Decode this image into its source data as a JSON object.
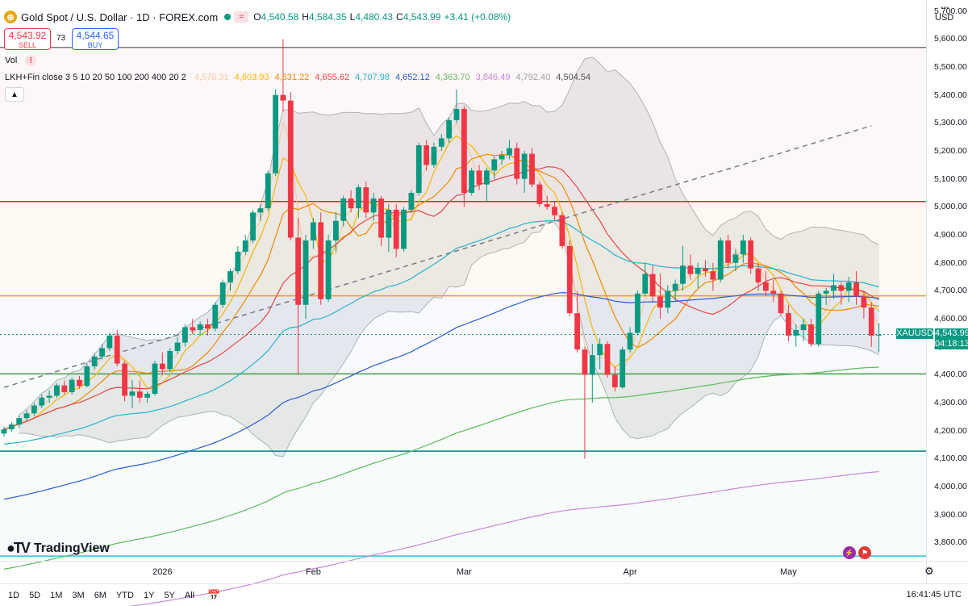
{
  "header": {
    "title": "Gold Spot / U.S. Dollar · 1D · FOREX.com",
    "icon_symbol": "⊕",
    "approx_symbol": "≈",
    "ohlc": {
      "o_label": "O",
      "o": "4,540.58",
      "h_label": "H",
      "h": "4,584.35",
      "l_label": "L",
      "l": "4,480.43",
      "c_label": "C",
      "c": "4,543.99",
      "change": "+3.41 (+0.08%)"
    },
    "sell_price": "4,543.92",
    "sell_label": "SELL",
    "spread": "73",
    "buy_price": "4,544.65",
    "buy_label": "BUY",
    "vol_label": "Vol",
    "warn_symbol": "!",
    "indicator_name": "LKH+Fin close 3 5 10 20 50 100 200 400 20 2",
    "indicator_values": [
      {
        "v": "4,576.31",
        "color": "#f7c9a0"
      },
      {
        "v": "4,603.93",
        "color": "#f5b800"
      },
      {
        "v": "4,631.22",
        "color": "#f08a00"
      },
      {
        "v": "4,655.62",
        "color": "#e64646"
      },
      {
        "v": "4,707.98",
        "color": "#26b3cc"
      },
      {
        "v": "4,652.12",
        "color": "#2e5bd6"
      },
      {
        "v": "4,363.70",
        "color": "#5fb85f"
      },
      {
        "v": "3,846.49",
        "color": "#c48ad6"
      },
      {
        "v": "4,792.40",
        "color": "#a0a0a0"
      },
      {
        "v": "4,504.54",
        "color": "#555555"
      }
    ]
  },
  "price_axis": {
    "currency": "USD",
    "ticks": [
      "5,700.00",
      "5,600.00",
      "5,500.00",
      "5,400.00",
      "5,300.00",
      "5,200.00",
      "5,100.00",
      "5,000.00",
      "4,900.00",
      "4,800.00",
      "4,700.00",
      "4,600.00",
      "4,500.00",
      "4,400.00",
      "4,300.00",
      "4,200.00",
      "4,100.00",
      "4,000.00",
      "3,900.00",
      "3,800.00"
    ],
    "symbol_tag": "XAUUSD",
    "last_price": "4,543.99",
    "countdown": "04:18:13"
  },
  "time_axis": {
    "labels": [
      "2026",
      "Feb",
      "Mar",
      "Apr",
      "May"
    ]
  },
  "branding": {
    "name": "TradingView"
  },
  "bottom_bar": {
    "timeframes": [
      "1D",
      "5D",
      "1M",
      "3M",
      "6M",
      "YTD",
      "1Y",
      "5Y",
      "All"
    ],
    "clock": "16:41:45 UTC"
  },
  "colors": {
    "up": "#089981",
    "down": "#f23645"
  },
  "chart_data": {
    "type": "candlestick",
    "ylim": [
      3735,
      5725
    ],
    "x_labels": [
      {
        "label": "2026",
        "index": 21
      },
      {
        "label": "Feb",
        "index": 41
      },
      {
        "label": "Mar",
        "index": 61
      },
      {
        "label": "Apr",
        "index": 83
      },
      {
        "label": "May",
        "index": 104
      }
    ],
    "candles": [
      [
        4190,
        4215,
        4180,
        4205
      ],
      [
        4205,
        4230,
        4195,
        4222
      ],
      [
        4222,
        4255,
        4210,
        4245
      ],
      [
        4245,
        4275,
        4235,
        4262
      ],
      [
        4262,
        4300,
        4250,
        4290
      ],
      [
        4290,
        4330,
        4280,
        4318
      ],
      [
        4318,
        4345,
        4300,
        4325
      ],
      [
        4325,
        4370,
        4318,
        4362
      ],
      [
        4362,
        4380,
        4330,
        4338
      ],
      [
        4338,
        4390,
        4330,
        4382
      ],
      [
        4382,
        4395,
        4350,
        4360
      ],
      [
        4360,
        4440,
        4355,
        4430
      ],
      [
        4430,
        4475,
        4420,
        4465
      ],
      [
        4465,
        4510,
        4455,
        4495
      ],
      [
        4495,
        4550,
        4485,
        4540
      ],
      [
        4540,
        4560,
        4430,
        4440
      ],
      [
        4440,
        4450,
        4305,
        4325
      ],
      [
        4325,
        4380,
        4280,
        4340
      ],
      [
        4340,
        4380,
        4300,
        4318
      ],
      [
        4318,
        4340,
        4300,
        4332
      ],
      [
        4332,
        4450,
        4325,
        4440
      ],
      [
        4440,
        4480,
        4400,
        4420
      ],
      [
        4420,
        4495,
        4410,
        4485
      ],
      [
        4485,
        4535,
        4475,
        4515
      ],
      [
        4515,
        4580,
        4500,
        4570
      ],
      [
        4570,
        4600,
        4545,
        4560
      ],
      [
        4560,
        4590,
        4540,
        4580
      ],
      [
        4580,
        4600,
        4540,
        4565
      ],
      [
        4565,
        4660,
        4555,
        4650
      ],
      [
        4650,
        4740,
        4640,
        4730
      ],
      [
        4730,
        4780,
        4700,
        4770
      ],
      [
        4770,
        4860,
        4760,
        4840
      ],
      [
        4840,
        4900,
        4830,
        4880
      ],
      [
        4880,
        4990,
        4870,
        4980
      ],
      [
        4980,
        5010,
        4950,
        4995
      ],
      [
        4995,
        5130,
        4985,
        5120
      ],
      [
        5120,
        5420,
        5110,
        5400
      ],
      [
        5400,
        5600,
        5340,
        5380
      ],
      [
        5380,
        5410,
        4880,
        4890
      ],
      [
        4890,
        4960,
        4400,
        4650
      ],
      [
        4650,
        4900,
        4600,
        4880
      ],
      [
        4880,
        4960,
        4850,
        4945
      ],
      [
        4945,
        4980,
        4650,
        4670
      ],
      [
        4670,
        4900,
        4660,
        4880
      ],
      [
        4880,
        4980,
        4840,
        4950
      ],
      [
        4950,
        5040,
        4930,
        5030
      ],
      [
        5030,
        5060,
        4980,
        4995
      ],
      [
        4995,
        5080,
        4960,
        5070
      ],
      [
        5070,
        5090,
        4960,
        4980
      ],
      [
        4980,
        5050,
        4950,
        5030
      ],
      [
        5030,
        5040,
        4860,
        4890
      ],
      [
        4890,
        5010,
        4840,
        4990
      ],
      [
        4990,
        5010,
        4820,
        4850
      ],
      [
        4850,
        5000,
        4840,
        4990
      ],
      [
        4990,
        5060,
        4980,
        5050
      ],
      [
        5050,
        5230,
        5040,
        5220
      ],
      [
        5220,
        5240,
        5130,
        5150
      ],
      [
        5150,
        5230,
        5140,
        5215
      ],
      [
        5215,
        5260,
        5200,
        5245
      ],
      [
        5245,
        5320,
        5230,
        5310
      ],
      [
        5310,
        5420,
        5300,
        5350
      ],
      [
        5350,
        5360,
        5000,
        5050
      ],
      [
        5050,
        5140,
        5040,
        5130
      ],
      [
        5130,
        5150,
        5060,
        5080
      ],
      [
        5080,
        5140,
        5020,
        5130
      ],
      [
        5130,
        5180,
        5100,
        5170
      ],
      [
        5170,
        5200,
        5150,
        5185
      ],
      [
        5185,
        5240,
        5170,
        5210
      ],
      [
        5210,
        5230,
        5080,
        5100
      ],
      [
        5100,
        5200,
        5050,
        5190
      ],
      [
        5190,
        5210,
        5070,
        5080
      ],
      [
        5080,
        5090,
        5000,
        5010
      ],
      [
        5010,
        5040,
        4990,
        5000
      ],
      [
        5000,
        5020,
        4950,
        4970
      ],
      [
        4970,
        4980,
        4850,
        4860
      ],
      [
        4860,
        4880,
        4610,
        4620
      ],
      [
        4620,
        4700,
        4480,
        4490
      ],
      [
        4490,
        4500,
        4100,
        4400
      ],
      [
        4400,
        4510,
        4300,
        4470
      ],
      [
        4470,
        4530,
        4420,
        4510
      ],
      [
        4510,
        4520,
        4390,
        4400
      ],
      [
        4400,
        4430,
        4340,
        4355
      ],
      [
        4355,
        4500,
        4350,
        4490
      ],
      [
        4490,
        4570,
        4480,
        4550
      ],
      [
        4550,
        4700,
        4540,
        4690
      ],
      [
        4690,
        4800,
        4680,
        4760
      ],
      [
        4760,
        4790,
        4660,
        4680
      ],
      [
        4680,
        4760,
        4600,
        4640
      ],
      [
        4640,
        4720,
        4620,
        4700
      ],
      [
        4700,
        4740,
        4660,
        4725
      ],
      [
        4725,
        4860,
        4700,
        4790
      ],
      [
        4790,
        4830,
        4740,
        4760
      ],
      [
        4760,
        4800,
        4710,
        4780
      ],
      [
        4780,
        4810,
        4750,
        4770
      ],
      [
        4770,
        4800,
        4700,
        4740
      ],
      [
        4740,
        4890,
        4730,
        4880
      ],
      [
        4880,
        4900,
        4780,
        4800
      ],
      [
        4800,
        4850,
        4770,
        4830
      ],
      [
        4830,
        4900,
        4800,
        4880
      ],
      [
        4880,
        4890,
        4760,
        4780
      ],
      [
        4780,
        4800,
        4700,
        4730
      ],
      [
        4730,
        4770,
        4680,
        4700
      ],
      [
        4700,
        4740,
        4660,
        4690
      ],
      [
        4690,
        4700,
        4610,
        4620
      ],
      [
        4620,
        4650,
        4520,
        4540
      ],
      [
        4540,
        4580,
        4500,
        4560
      ],
      [
        4560,
        4600,
        4520,
        4580
      ],
      [
        4580,
        4600,
        4500,
        4510
      ],
      [
        4510,
        4700,
        4500,
        4690
      ],
      [
        4690,
        4710,
        4650,
        4700
      ],
      [
        4700,
        4760,
        4670,
        4720
      ],
      [
        4720,
        4730,
        4650,
        4700
      ],
      [
        4700,
        4750,
        4660,
        4730
      ],
      [
        4730,
        4770,
        4650,
        4680
      ],
      [
        4680,
        4700,
        4600,
        4640
      ],
      [
        4640,
        4660,
        4500,
        4540
      ],
      [
        4540,
        4584,
        4480,
        4543
      ]
    ],
    "horizontal_levels": [
      {
        "price": 5570,
        "color": "#787b86"
      },
      {
        "price": 5019,
        "color": "#d32f2f"
      },
      {
        "price": 4682,
        "color": "#f59c1a"
      },
      {
        "price": 4403,
        "color": "#43a047"
      },
      {
        "price": 4127,
        "color": "#00838f"
      },
      {
        "price": 3752,
        "color": "#26c6da"
      }
    ],
    "trend_line": {
      "from": [
        0,
        4355
      ],
      "to": [
        115,
        5290
      ]
    },
    "last_price_line": 4543.99
  }
}
